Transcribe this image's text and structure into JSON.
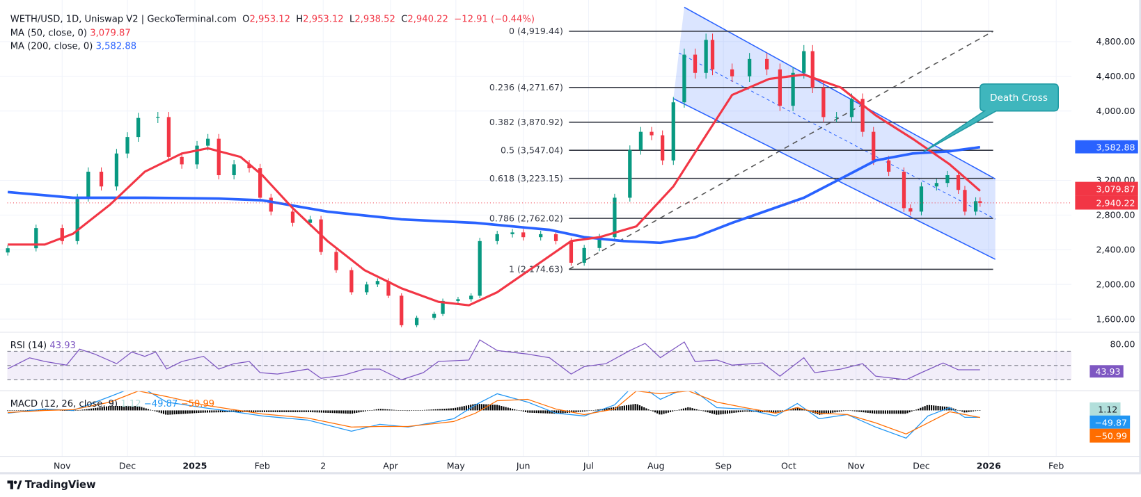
{
  "header": {
    "symbol_line": "WETH/USD, 1D, Uniswap V2 | GeckoTerminal.com",
    "o_label": "O",
    "open": "2,953.12",
    "h_label": "H",
    "high": "2,953.12",
    "l_label": "L",
    "low": "2,938.52",
    "c_label": "C",
    "close": "2,940.22",
    "change": "−12.91 (−0.44%)",
    "ma50_label": "MA (50, close, 0)",
    "ma50_value": "3,079.87",
    "ma200_label": "MA (200, close, 0)",
    "ma200_value": "3,582.88"
  },
  "rsi": {
    "label": "RSI (14)",
    "value": "43.93",
    "axis_label": "80.00"
  },
  "macd": {
    "label": "MACD (12, 26, close, 9)",
    "hist_value": "1.12",
    "macd_value": "−49.87",
    "signal_value": "−50.99"
  },
  "price_axis": {
    "ticks": [
      "4,800.00",
      "4,400.00",
      "4,000.00",
      "3,200.00",
      "2,800.00",
      "2,400.00",
      "2,000.00",
      "1,600.00"
    ],
    "badges": {
      "ma200": "3,582.88",
      "ma50": "3,079.87",
      "last": "2,940.22"
    }
  },
  "time_axis": {
    "labels": [
      "Nov",
      "Dec",
      "2025",
      "Feb",
      "2",
      "Apr",
      "May",
      "Jun",
      "Jul",
      "Aug",
      "Sep",
      "Oct",
      "Nov",
      "Dec",
      "2026",
      "Feb"
    ]
  },
  "annotations": {
    "callout": "Death Cross",
    "fib_labels": [
      "0 (4,919.44)",
      "0.236 (4,271.67)",
      "0.382 (3,870.92)",
      "0.5 (3,547.04)",
      "0.618 (3,223.15)",
      "0.786 (2,762.02)",
      "1 (2,174.63)"
    ]
  },
  "footer": {
    "brand": "TradingView"
  },
  "colors": {
    "up": "#089981",
    "down": "#f23645",
    "ma50": "#f23645",
    "ma200": "#2962ff",
    "rsi": "#7e57c2",
    "macd": "#2196f3",
    "signal": "#ff6d00",
    "callout": "#3fb6bd"
  },
  "chart_data": {
    "type": "candlestick",
    "title": "WETH/USD, 1D, Uniswap V2 | GeckoTerminal.com",
    "ylim": [
      1450,
      5150
    ],
    "grid": true,
    "closes": [
      [
        "2024-10-07",
        2417
      ],
      [
        "2024-10-20",
        2650
      ],
      [
        "2024-11-01",
        2500
      ],
      [
        "2024-11-08",
        3000
      ],
      [
        "2024-11-13",
        3300
      ],
      [
        "2024-11-19",
        3130
      ],
      [
        "2024-11-26",
        3510
      ],
      [
        "2024-12-01",
        3700
      ],
      [
        "2024-12-06",
        3920
      ],
      [
        "2024-12-15",
        3930
      ],
      [
        "2024-12-20",
        3470
      ],
      [
        "2024-12-26",
        3385
      ],
      [
        "2025-01-02",
        3600
      ],
      [
        "2025-01-07",
        3680
      ],
      [
        "2025-01-12",
        3260
      ],
      [
        "2025-01-19",
        3385
      ],
      [
        "2025-01-26",
        3340
      ],
      [
        "2025-01-31",
        3000
      ],
      [
        "2025-02-05",
        2840
      ],
      [
        "2025-02-15",
        2710
      ],
      [
        "2025-02-23",
        2750
      ],
      [
        "2025-02-28",
        2375
      ],
      [
        "2025-03-07",
        2165
      ],
      [
        "2025-03-14",
        1910
      ],
      [
        "2025-03-21",
        2000
      ],
      [
        "2025-03-26",
        2040
      ],
      [
        "2025-03-31",
        1870
      ],
      [
        "2025-04-06",
        1530
      ],
      [
        "2025-04-13",
        1615
      ],
      [
        "2025-04-21",
        1660
      ],
      [
        "2025-04-25",
        1810
      ],
      [
        "2025-05-02",
        1830
      ],
      [
        "2025-05-08",
        1870
      ],
      [
        "2025-05-12",
        2500
      ],
      [
        "2025-05-20",
        2580
      ],
      [
        "2025-05-27",
        2600
      ],
      [
        "2025-06-01",
        2545
      ],
      [
        "2025-06-09",
        2580
      ],
      [
        "2025-06-16",
        2500
      ],
      [
        "2025-06-23",
        2250
      ],
      [
        "2025-06-29",
        2420
      ],
      [
        "2025-07-06",
        2545
      ],
      [
        "2025-07-13",
        3000
      ],
      [
        "2025-07-20",
        3550
      ],
      [
        "2025-07-25",
        3760
      ],
      [
        "2025-07-30",
        3720
      ],
      [
        "2025-08-04",
        3430
      ],
      [
        "2025-08-09",
        4100
      ],
      [
        "2025-08-14",
        4650
      ],
      [
        "2025-08-19",
        4440
      ],
      [
        "2025-08-24",
        4820
      ],
      [
        "2025-08-27",
        4480
      ],
      [
        "2025-09-05",
        4400
      ],
      [
        "2025-09-13",
        4600
      ],
      [
        "2025-09-21",
        4480
      ],
      [
        "2025-09-27",
        4060
      ],
      [
        "2025-10-03",
        4440
      ],
      [
        "2025-10-08",
        4690
      ],
      [
        "2025-10-12",
        4270
      ],
      [
        "2025-10-17",
        3930
      ],
      [
        "2025-10-23",
        3930
      ],
      [
        "2025-10-30",
        4140
      ],
      [
        "2025-11-04",
        3760
      ],
      [
        "2025-11-09",
        3430
      ],
      [
        "2025-11-16",
        3300
      ],
      [
        "2025-11-23",
        2880
      ],
      [
        "2025-11-26",
        2840
      ],
      [
        "2025-12-01",
        3130
      ],
      [
        "2025-12-08",
        3170
      ],
      [
        "2025-12-13",
        3260
      ],
      [
        "2025-12-18",
        3090
      ],
      [
        "2025-12-21",
        2840
      ],
      [
        "2025-12-26",
        2960
      ],
      [
        "2025-12-28",
        2940.22
      ]
    ],
    "ma50": [
      [
        "2024-10-07",
        2460
      ],
      [
        "2024-10-24",
        2460
      ],
      [
        "2024-11-06",
        2585
      ],
      [
        "2024-11-23",
        2920
      ],
      [
        "2024-12-09",
        3300
      ],
      [
        "2024-12-26",
        3510
      ],
      [
        "2025-01-07",
        3570
      ],
      [
        "2025-01-22",
        3470
      ],
      [
        "2025-02-01",
        3260
      ],
      [
        "2025-02-15",
        2880
      ],
      [
        "2025-03-03",
        2500
      ],
      [
        "2025-03-20",
        2165
      ],
      [
        "2025-04-06",
        1955
      ],
      [
        "2025-04-23",
        1800
      ],
      [
        "2025-05-07",
        1760
      ],
      [
        "2025-05-20",
        1910
      ],
      [
        "2025-06-06",
        2205
      ],
      [
        "2025-06-23",
        2500
      ],
      [
        "2025-07-06",
        2545
      ],
      [
        "2025-07-23",
        2670
      ],
      [
        "2025-08-09",
        3130
      ],
      [
        "2025-08-23",
        3680
      ],
      [
        "2025-09-05",
        4185
      ],
      [
        "2025-09-22",
        4370
      ],
      [
        "2025-10-08",
        4420
      ],
      [
        "2025-10-25",
        4270
      ],
      [
        "2025-11-10",
        3950
      ],
      [
        "2025-11-27",
        3680
      ],
      [
        "2025-12-14",
        3385
      ],
      [
        "2025-12-28",
        3079.87
      ]
    ],
    "ma200": [
      [
        "2024-10-07",
        3065
      ],
      [
        "2024-11-06",
        3000
      ],
      [
        "2024-12-09",
        3000
      ],
      [
        "2025-01-12",
        2990
      ],
      [
        "2025-02-01",
        2970
      ],
      [
        "2025-03-03",
        2840
      ],
      [
        "2025-04-06",
        2750
      ],
      [
        "2025-05-10",
        2710
      ],
      [
        "2025-06-13",
        2630
      ],
      [
        "2025-06-29",
        2545
      ],
      [
        "2025-07-17",
        2500
      ],
      [
        "2025-08-03",
        2480
      ],
      [
        "2025-08-19",
        2545
      ],
      [
        "2025-09-05",
        2710
      ],
      [
        "2025-10-08",
        3000
      ],
      [
        "2025-10-25",
        3220
      ],
      [
        "2025-11-10",
        3430
      ],
      [
        "2025-11-27",
        3510
      ],
      [
        "2025-12-14",
        3535
      ],
      [
        "2025-12-28",
        3582.88
      ]
    ],
    "rsi": {
      "levels": [
        30,
        50,
        70
      ],
      "values": [
        [
          "2024-10-07",
          45.4
        ],
        [
          "2024-10-17",
          60.8
        ],
        [
          "2024-10-24",
          55.6
        ],
        [
          "2024-11-03",
          50.5
        ],
        [
          "2024-11-09",
          73
        ],
        [
          "2024-11-16",
          66
        ],
        [
          "2024-11-26",
          52.6
        ],
        [
          "2024-12-03",
          69
        ],
        [
          "2024-12-09",
          62.8
        ],
        [
          "2024-12-14",
          69
        ],
        [
          "2024-12-19",
          45
        ],
        [
          "2024-12-26",
          55.6
        ],
        [
          "2025-01-05",
          62.8
        ],
        [
          "2025-01-12",
          45
        ],
        [
          "2025-01-19",
          52.6
        ],
        [
          "2025-01-26",
          55.6
        ],
        [
          "2025-01-31",
          40
        ],
        [
          "2025-02-08",
          38
        ],
        [
          "2025-02-22",
          45
        ],
        [
          "2025-02-28",
          32
        ],
        [
          "2025-03-10",
          36
        ],
        [
          "2025-03-20",
          45
        ],
        [
          "2025-03-27",
          45
        ],
        [
          "2025-04-06",
          30
        ],
        [
          "2025-04-16",
          40
        ],
        [
          "2025-04-23",
          55.6
        ],
        [
          "2025-05-07",
          57.7
        ],
        [
          "2025-05-12",
          86
        ],
        [
          "2025-05-20",
          71
        ],
        [
          "2025-06-03",
          66
        ],
        [
          "2025-06-13",
          61
        ],
        [
          "2025-06-23",
          38
        ],
        [
          "2025-06-29",
          48.5
        ],
        [
          "2025-07-09",
          52.6
        ],
        [
          "2025-07-20",
          71
        ],
        [
          "2025-07-27",
          81
        ],
        [
          "2025-08-03",
          61
        ],
        [
          "2025-08-14",
          83
        ],
        [
          "2025-08-19",
          55.6
        ],
        [
          "2025-08-29",
          57.7
        ],
        [
          "2025-09-05",
          50.5
        ],
        [
          "2025-09-19",
          53.6
        ],
        [
          "2025-09-27",
          35
        ],
        [
          "2025-10-08",
          61
        ],
        [
          "2025-10-13",
          40
        ],
        [
          "2025-10-25",
          45
        ],
        [
          "2025-11-04",
          52.6
        ],
        [
          "2025-11-10",
          35
        ],
        [
          "2025-11-24",
          30
        ],
        [
          "2025-12-01",
          40
        ],
        [
          "2025-12-11",
          53.6
        ],
        [
          "2025-12-18",
          44
        ],
        [
          "2025-12-28",
          43.93
        ]
      ]
    },
    "macd": {
      "macd": [
        [
          "2024-10-07",
          -20
        ],
        [
          "2024-10-24",
          10
        ],
        [
          "2024-11-06",
          0
        ],
        [
          "2024-11-23",
          100
        ],
        [
          "2024-12-06",
          180
        ],
        [
          "2024-12-19",
          60
        ],
        [
          "2025-01-05",
          20
        ],
        [
          "2025-01-19",
          -10
        ],
        [
          "2025-02-01",
          -40
        ],
        [
          "2025-02-22",
          -70
        ],
        [
          "2025-03-14",
          -150
        ],
        [
          "2025-03-27",
          -100
        ],
        [
          "2025-04-09",
          -120
        ],
        [
          "2025-04-30",
          -60
        ],
        [
          "2025-05-10",
          40
        ],
        [
          "2025-05-20",
          120
        ],
        [
          "2025-06-03",
          60
        ],
        [
          "2025-06-16",
          -20
        ],
        [
          "2025-06-29",
          -40
        ],
        [
          "2025-07-13",
          40
        ],
        [
          "2025-07-23",
          200
        ],
        [
          "2025-08-03",
          80
        ],
        [
          "2025-08-16",
          170
        ],
        [
          "2025-08-29",
          20
        ],
        [
          "2025-09-11",
          10
        ],
        [
          "2025-09-25",
          -40
        ],
        [
          "2025-10-05",
          50
        ],
        [
          "2025-10-15",
          -60
        ],
        [
          "2025-10-28",
          -30
        ],
        [
          "2025-11-10",
          -120
        ],
        [
          "2025-11-24",
          -200
        ],
        [
          "2025-12-04",
          -40
        ],
        [
          "2025-12-14",
          20
        ],
        [
          "2025-12-21",
          -50
        ],
        [
          "2025-12-28",
          -49.87
        ]
      ],
      "signal": [
        [
          "2024-10-07",
          -15
        ],
        [
          "2024-10-24",
          0
        ],
        [
          "2024-11-06",
          5
        ],
        [
          "2024-11-23",
          60
        ],
        [
          "2024-12-06",
          140
        ],
        [
          "2024-12-19",
          100
        ],
        [
          "2025-01-05",
          40
        ],
        [
          "2025-01-19",
          5
        ],
        [
          "2025-02-01",
          -25
        ],
        [
          "2025-02-22",
          -55
        ],
        [
          "2025-03-14",
          -120
        ],
        [
          "2025-03-27",
          -115
        ],
        [
          "2025-04-09",
          -115
        ],
        [
          "2025-04-30",
          -80
        ],
        [
          "2025-05-10",
          -20
        ],
        [
          "2025-05-20",
          70
        ],
        [
          "2025-06-03",
          80
        ],
        [
          "2025-06-16",
          10
        ],
        [
          "2025-06-29",
          -30
        ],
        [
          "2025-07-13",
          10
        ],
        [
          "2025-07-23",
          140
        ],
        [
          "2025-08-03",
          120
        ],
        [
          "2025-08-16",
          140
        ],
        [
          "2025-08-29",
          60
        ],
        [
          "2025-09-11",
          20
        ],
        [
          "2025-09-25",
          -20
        ],
        [
          "2025-10-05",
          20
        ],
        [
          "2025-10-15",
          -20
        ],
        [
          "2025-10-28",
          -30
        ],
        [
          "2025-11-10",
          -90
        ],
        [
          "2025-11-24",
          -170
        ],
        [
          "2025-12-04",
          -90
        ],
        [
          "2025-12-14",
          -10
        ],
        [
          "2025-12-21",
          -30
        ],
        [
          "2025-12-28",
          -50.99
        ]
      ]
    },
    "fibonacci": {
      "from": [
        "2025-06-22",
        2174.63
      ],
      "to": [
        "2026-01-03",
        4919.44
      ],
      "levels": [
        0,
        0.236,
        0.382,
        0.5,
        0.618,
        0.786,
        1
      ],
      "prices": [
        4919.44,
        4271.67,
        3870.92,
        3547.04,
        3223.15,
        2762.02,
        2174.63
      ]
    },
    "channel": {
      "upper": [
        [
          "2025-08-14",
          5196
        ],
        [
          "2026-01-04",
          3217
        ]
      ],
      "lower": [
        [
          "2025-08-09",
          4143
        ],
        [
          "2026-01-04",
          2290
        ]
      ]
    },
    "callout_point": [
      "2025-12-02",
      3530
    ]
  }
}
